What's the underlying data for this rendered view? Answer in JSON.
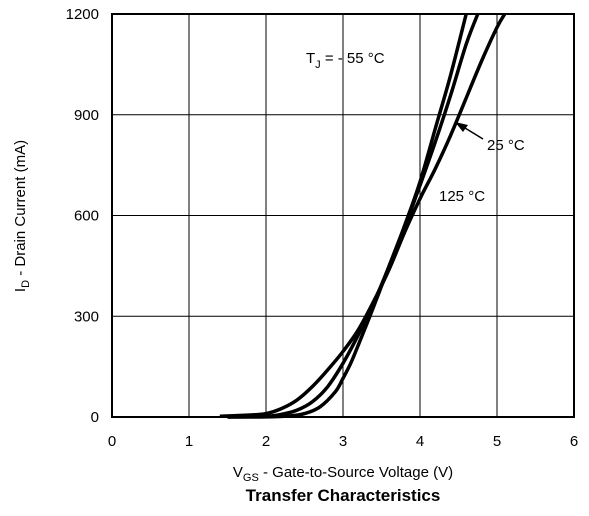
{
  "chart_data": {
    "type": "line",
    "title": "Transfer Characteristics",
    "xlabel": {
      "main": "V",
      "sub": "GS",
      "rest": " - Gate-to-Source Voltage (V)"
    },
    "ylabel": {
      "main": "I",
      "sub": "D",
      "rest": " - Drain Current (mA)"
    },
    "xlim": [
      0,
      6
    ],
    "ylim": [
      0,
      1200
    ],
    "xticks": [
      0,
      1,
      2,
      3,
      4,
      5,
      6
    ],
    "yticks": [
      0,
      300,
      600,
      900,
      1200
    ],
    "xtick_labels": [
      "0",
      "1",
      "2",
      "3",
      "4",
      "5",
      "6"
    ],
    "ytick_labels": [
      "0",
      "300",
      "600",
      "900",
      "1200"
    ],
    "grid": true,
    "series": [
      {
        "name": "-55 °C",
        "points": [
          [
            1.5,
            0
          ],
          [
            2.0,
            0.3
          ],
          [
            2.3,
            3
          ],
          [
            2.5,
            10
          ],
          [
            2.7,
            30
          ],
          [
            2.9,
            75
          ],
          [
            3.0,
            115
          ],
          [
            3.1,
            160
          ],
          [
            3.2,
            215
          ],
          [
            3.4,
            330
          ],
          [
            3.6,
            450
          ],
          [
            3.8,
            570
          ],
          [
            4.0,
            700
          ],
          [
            4.2,
            860
          ],
          [
            4.4,
            1020
          ],
          [
            4.6,
            1200
          ]
        ]
      },
      {
        "name": "25 °C",
        "points": [
          [
            1.5,
            0
          ],
          [
            2.0,
            2
          ],
          [
            2.2,
            8
          ],
          [
            2.4,
            20
          ],
          [
            2.6,
            45
          ],
          [
            2.8,
            90
          ],
          [
            3.0,
            160
          ],
          [
            3.2,
            245
          ],
          [
            3.4,
            340
          ],
          [
            3.6,
            450
          ],
          [
            3.8,
            565
          ],
          [
            4.0,
            690
          ],
          [
            4.2,
            820
          ],
          [
            4.4,
            960
          ],
          [
            4.6,
            1110
          ],
          [
            4.75,
            1200
          ]
        ]
      },
      {
        "name": "125 °C",
        "points": [
          [
            1.4,
            2
          ],
          [
            1.8,
            6
          ],
          [
            2.0,
            10
          ],
          [
            2.2,
            25
          ],
          [
            2.4,
            50
          ],
          [
            2.6,
            90
          ],
          [
            2.8,
            140
          ],
          [
            3.0,
            195
          ],
          [
            3.2,
            260
          ],
          [
            3.4,
            345
          ],
          [
            3.6,
            440
          ],
          [
            3.8,
            550
          ],
          [
            4.0,
            650
          ],
          [
            4.2,
            740
          ],
          [
            4.4,
            840
          ],
          [
            4.6,
            950
          ],
          [
            4.8,
            1060
          ],
          [
            5.0,
            1160
          ],
          [
            5.1,
            1200
          ]
        ]
      }
    ],
    "annotations": {
      "tj_label": {
        "main": "T",
        "sub": "J",
        "rest": " = - 55 °C"
      },
      "t25_label": "25 °C",
      "t125_label": "125 °C"
    }
  }
}
